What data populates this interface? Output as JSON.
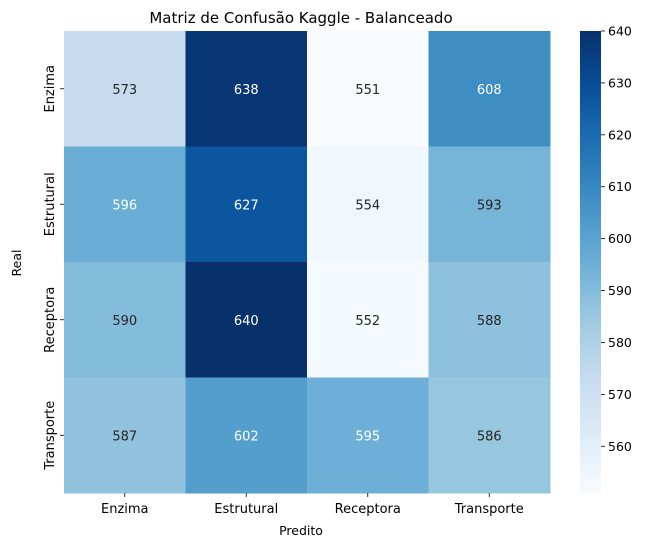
{
  "chart_data": {
    "type": "heatmap",
    "title": "Matriz de Confusão Kaggle - Balanceado",
    "xlabel": "Predito",
    "ylabel": "Real",
    "x_categories": [
      "Enzima",
      "Estrutural",
      "Receptora",
      "Transporte"
    ],
    "y_categories": [
      "Enzima",
      "Estrutural",
      "Receptora",
      "Transporte"
    ],
    "values": [
      [
        573,
        638,
        551,
        608
      ],
      [
        596,
        627,
        554,
        593
      ],
      [
        590,
        640,
        552,
        588
      ],
      [
        587,
        602,
        595,
        586
      ]
    ],
    "colormap": "Blues",
    "vmin": 551,
    "vmax": 640,
    "colorbar_ticks": [
      560,
      570,
      580,
      590,
      600,
      610,
      620,
      630,
      640
    ]
  }
}
